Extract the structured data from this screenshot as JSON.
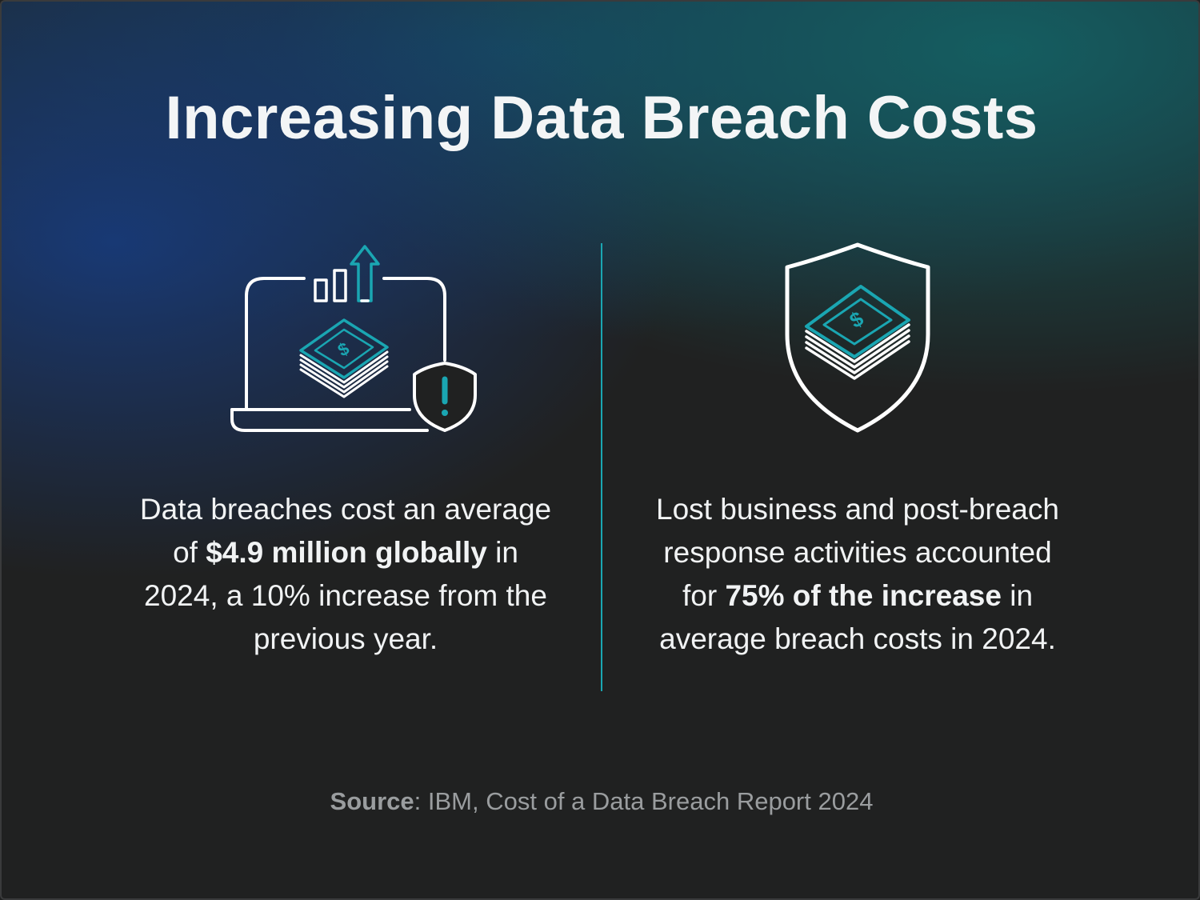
{
  "title": "Increasing Data Breach Costs",
  "left_stat": {
    "part1": "Data breaches cost an average of ",
    "bold": "$4.9 million globally",
    "part2": " in 2024, a 10% increase from the previous year."
  },
  "right_stat": {
    "part1": "Lost business and post-breach response activities accounted for ",
    "bold": "75% of the increase",
    "part2": " in average breach costs in 2024."
  },
  "source": {
    "label": "Source",
    "text": ": IBM, Cost of a Data Breach Report 2024"
  },
  "icons": {
    "left": "laptop-money-chart-shield-icon",
    "right": "shield-money-icon"
  },
  "colors": {
    "accent": "#1aa6b2",
    "text": "#f1f3f4",
    "muted": "#9a9d9f"
  }
}
